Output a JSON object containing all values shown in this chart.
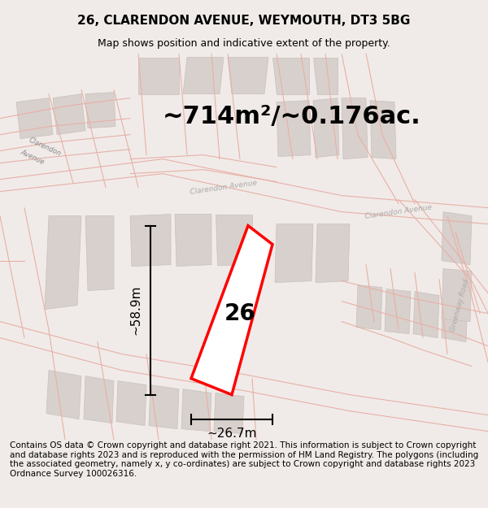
{
  "title": "26, CLARENDON AVENUE, WEYMOUTH, DT3 5BG",
  "subtitle": "Map shows position and indicative extent of the property.",
  "area_text": "~714m²/~0.176ac.",
  "dim_vertical": "~58.9m",
  "dim_horizontal": "~26.7m",
  "property_label": "26",
  "footer_text": "Contains OS data © Crown copyright and database right 2021. This information is subject to Crown copyright and database rights 2023 and is reproduced with the permission of HM Land Registry. The polygons (including the associated geometry, namely x, y co-ordinates) are subject to Crown copyright and database rights 2023 Ordnance Survey 100026316.",
  "bg_color": "#f5f0ee",
  "map_bg_color": "#ffffff",
  "building_color": "#d8d0cc",
  "building_edge_color": "#c8c0bc",
  "street_color": "#e8b0a8",
  "property_color": "red",
  "dim_line_color": "#000000",
  "title_fontsize": 11,
  "subtitle_fontsize": 9,
  "area_fontsize": 22,
  "label_fontsize": 20,
  "dim_fontsize": 11,
  "footer_fontsize": 7.5
}
